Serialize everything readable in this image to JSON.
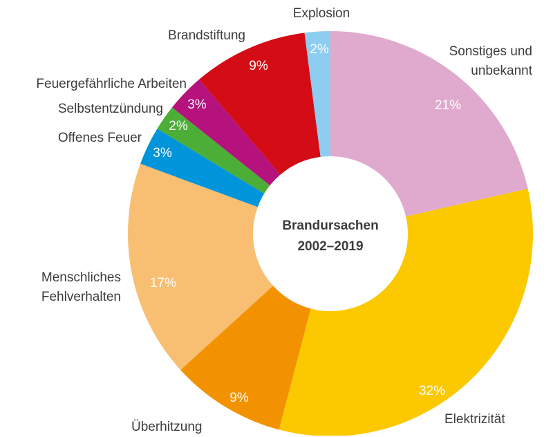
{
  "chart_data": {
    "type": "pie",
    "title": "Brandursachen",
    "subtitle": "2002–2019",
    "categories": [
      "Sonstiges und unbekannt",
      "Elektrizität",
      "Überhitzung",
      "Menschliches Fehlverhalten",
      "Offenes Feuer",
      "Selbstentzündung",
      "Feuergefährliche Arbeiten",
      "Brandstiftung",
      "Explosion"
    ],
    "values": [
      21,
      32,
      9,
      17,
      3,
      2,
      3,
      9,
      2
    ],
    "value_labels": [
      "21%",
      "32%",
      "9%",
      "17%",
      "3%",
      "2%",
      "3%",
      "9%",
      "2%"
    ],
    "colors": [
      "#dfaacd",
      "#fcc800",
      "#f39200",
      "#f8bf72",
      "#0095db",
      "#4cae36",
      "#b5127d",
      "#d40c15",
      "#8dcdf0"
    ]
  }
}
